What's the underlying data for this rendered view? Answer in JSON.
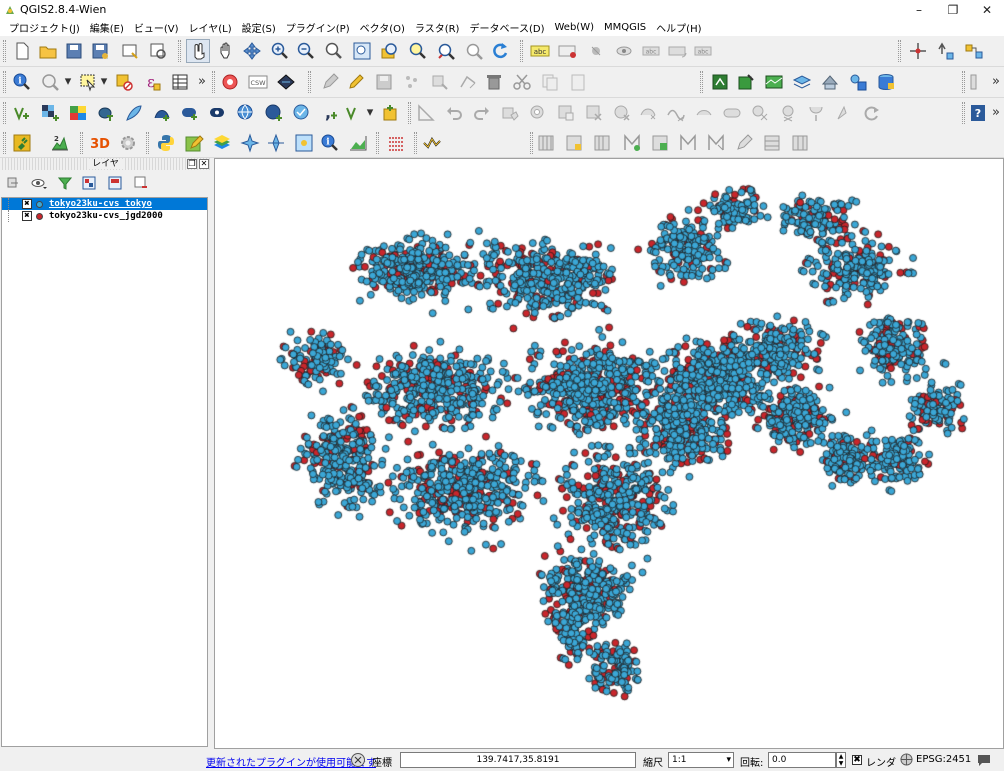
{
  "window": {
    "title": "QGIS2.8.4-Wien"
  },
  "menubar": {
    "items": [
      "プロジェクト(J)",
      "編集(E)",
      "ビュー(V)",
      "レイヤ(L)",
      "設定(S)",
      "プラグイン(P)",
      "ベクタ(O)",
      "ラスタ(R)",
      "データベース(D)",
      "Web(W)",
      "MMQGIS",
      "ヘルプ(H)"
    ]
  },
  "toolbars": {
    "row1": {
      "icons": [
        "new-project-icon",
        "open-project-icon",
        "save-project-icon",
        "save-as-icon",
        "new-print-composer-icon",
        "composer-manager-icon",
        "touch-zoom-icon",
        "pan-icon",
        "pan-to-selection-icon",
        "zoom-in-icon",
        "zoom-out-icon",
        "zoom-actual-icon",
        "zoom-full-icon",
        "zoom-to-layer-icon",
        "zoom-to-selection-icon",
        "zoom-last-icon",
        "zoom-next-icon",
        "refresh-icon"
      ],
      "label_icons": [
        "label-abc-icon",
        "pin-labels-icon",
        "highlight-pinned-icon",
        "show-hide-labels-icon",
        "move-label-icon",
        "rotate-label-icon",
        "change-label-icon"
      ],
      "right_icons": [
        "digitize-point-icon",
        "add-feature-icon",
        "node-tool-icon"
      ],
      "label_text": "abc",
      "csw_text": "CSW"
    },
    "row2_overflow": "»",
    "row3_number_icon": "2",
    "help_badge": "?"
  },
  "layers_panel": {
    "title": "レイヤ",
    "float_glyph": "❐",
    "close_glyph": "✕",
    "tools": [
      "open-layer-styling-icon",
      "manage-visibility-icon",
      "filter-legend-icon",
      "expand-all-icon",
      "collapse-all-icon",
      "remove-layer-icon"
    ],
    "layers": [
      {
        "name": "tokyo23ku-cvs_tokyo",
        "checked": true,
        "check_glyph": "✖",
        "color": "#3ba7d6",
        "selected": true
      },
      {
        "name": "tokyo23ku-cvs_jgd2000",
        "checked": true,
        "check_glyph": "✖",
        "color": "#c9262c",
        "selected": false
      }
    ]
  },
  "map": {
    "background": "#ffffff",
    "point_colors": {
      "tokyo": "#3ba7d6",
      "jgd2000": "#c9262c"
    },
    "point_outline": "#1c1c1c"
  },
  "statusbar": {
    "plugin_message": "更新されたプラグインが使用可能です",
    "coordinate_label": "座標",
    "coordinate_value": "139.7417,35.8191",
    "scale_label": "縮尺",
    "scale_value": "1:1",
    "rotation_label": "回転:",
    "rotation_value": "0.0",
    "render_label": "レンダ",
    "render_checked": true,
    "render_glyph": "✖",
    "crs_label": "EPSG:2451"
  }
}
